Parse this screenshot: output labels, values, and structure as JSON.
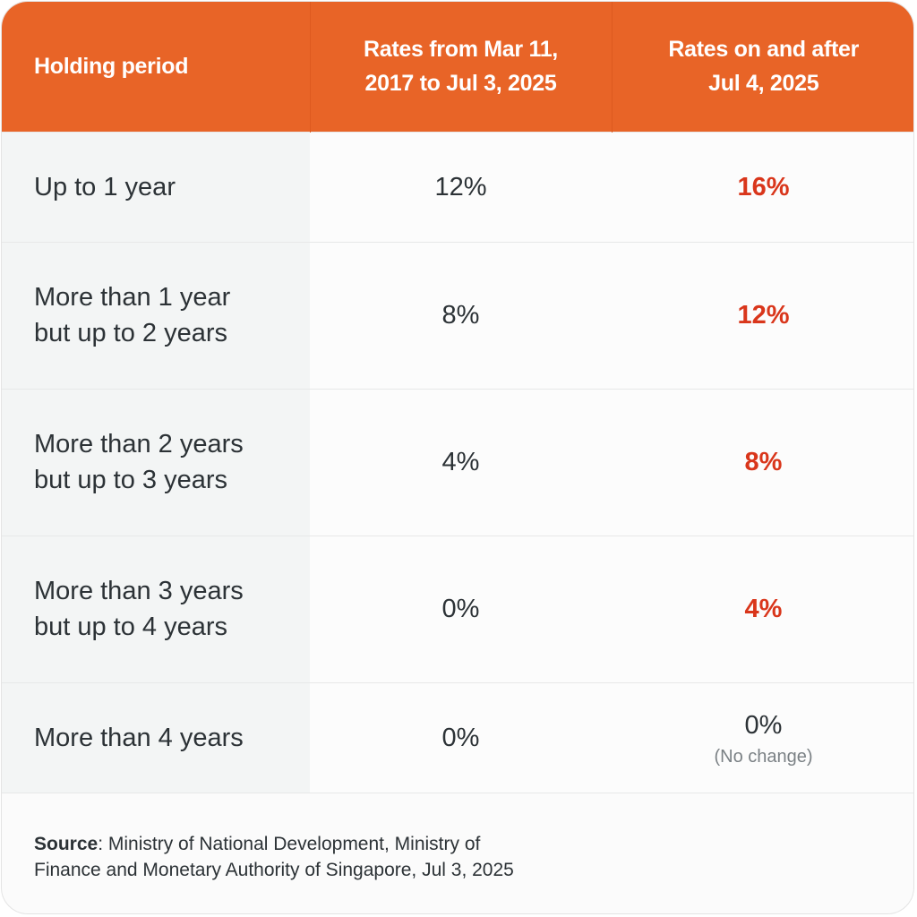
{
  "header": {
    "col1": "Holding period",
    "col2_line1": "Rates from Mar 11,",
    "col2_line2": "2017 to Jul 3, 2025",
    "col3_line1": "Rates on and after",
    "col3_line2": "Jul 4, 2025"
  },
  "rows": [
    {
      "period_line1": "Up to 1 year",
      "period_line2": "",
      "before": "12%",
      "after": "16%",
      "after_note": ""
    },
    {
      "period_line1": "More than 1 year",
      "period_line2": "but up to 2 years",
      "before": "8%",
      "after": "12%",
      "after_note": ""
    },
    {
      "period_line1": "More than 2 years",
      "period_line2": "but up to 3 years",
      "before": "4%",
      "after": "8%",
      "after_note": ""
    },
    {
      "period_line1": "More than 3 years",
      "period_line2": "but up to 4 years",
      "before": "0%",
      "after": "4%",
      "after_note": ""
    },
    {
      "period_line1": "More than 4 years",
      "period_line2": "",
      "before": "0%",
      "after": "0%",
      "after_note": "(No change)"
    }
  ],
  "source": {
    "label": "Source",
    "text_line1": ": Ministry of National Development, Ministry of",
    "text_line2": "Finance and Monetary Authority of Singapore, Jul 3, 2025"
  },
  "colors": {
    "header_bg": "#e86427",
    "highlight_rate": "#d9361b",
    "body_text": "#2c3236"
  }
}
